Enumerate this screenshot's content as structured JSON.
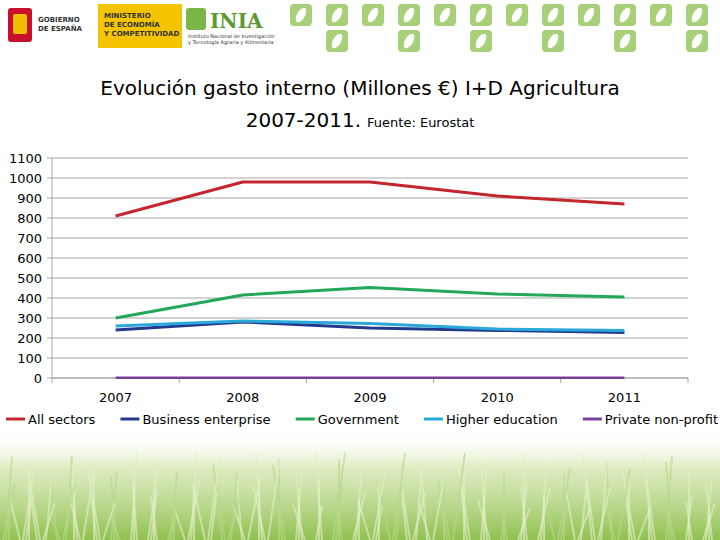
{
  "header": {
    "government": [
      "GOBIERNO",
      "DE ESPAÑA"
    ],
    "ministry": [
      "MINISTERIO",
      "DE ECONOMÍA",
      "Y COMPETITIVIDAD"
    ],
    "institute": "INIA",
    "institute_name": [
      "Instituto Nacional de Investigación",
      "y Tecnología Agraria y Alimentaria"
    ]
  },
  "chart_data": {
    "type": "line",
    "title": "Evolución gasto interno (Millones €) I+D Agricultura 2007-2011.",
    "subtitle": "Fuente: Eurostat",
    "categories": [
      "2007",
      "2008",
      "2009",
      "2010",
      "2011"
    ],
    "series": [
      {
        "name": "All sectors",
        "color": "#c4262e",
        "values": [
          810,
          980,
          980,
          910,
          870
        ]
      },
      {
        "name": "Business enterprise",
        "color": "#233a8c",
        "values": [
          240,
          280,
          250,
          238,
          228
        ]
      },
      {
        "name": "Government",
        "color": "#23a85b",
        "values": [
          300,
          415,
          452,
          420,
          405
        ]
      },
      {
        "name": "Higher education",
        "color": "#2ba8da",
        "values": [
          260,
          285,
          272,
          245,
          237
        ]
      },
      {
        "name": "Private non-profit",
        "color": "#7a3e97",
        "values": [
          0,
          0,
          0,
          0,
          0
        ]
      }
    ],
    "ylim": [
      0,
      1100
    ],
    "yticks": [
      0,
      100,
      200,
      300,
      400,
      500,
      600,
      700,
      800,
      900,
      1000,
      1100
    ],
    "grid": true,
    "legend": "bottom",
    "marker": "none",
    "line_style": "solid"
  }
}
